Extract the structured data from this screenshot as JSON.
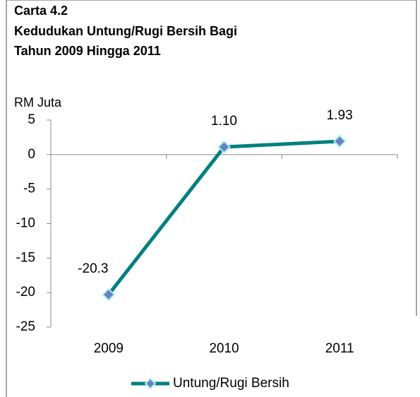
{
  "chart_data": {
    "type": "line",
    "title": [
      "Carta 4.2",
      "Kedudukan Untung/Rugi Bersih Bagi",
      "Tahun 2009 Hingga 2011"
    ],
    "y_label": "RM Juta",
    "categories": [
      "2009",
      "2010",
      "2011"
    ],
    "series": [
      {
        "name": "Untung/Rugi Bersih",
        "color": "#008080",
        "marker_color": "#6b7fc4",
        "values": [
          -20.3,
          1.1,
          1.93
        ],
        "value_labels": [
          "-20.3",
          "1.10",
          "1.93"
        ]
      }
    ],
    "ylim": [
      -25,
      5
    ],
    "yticks": [
      -25,
      -20,
      -15,
      -10,
      -5,
      0,
      5
    ],
    "legend": "bottom"
  }
}
